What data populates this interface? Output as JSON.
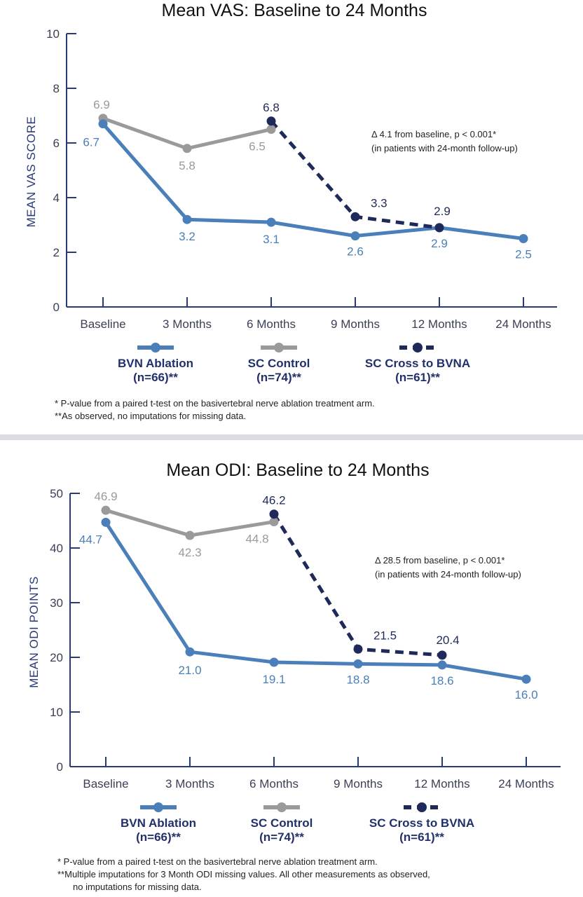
{
  "colors": {
    "bvn": "#4a7fba",
    "sc": "#9a9a9a",
    "cross": "#1f2a5a",
    "axis": "#2a3a78"
  },
  "charts": [
    {
      "title": "Mean VAS: Baseline to 24 Months",
      "ylabel": "MEAN VAS SCORE",
      "y_ticks": [
        "0",
        "2",
        "4",
        "6",
        "8",
        "10"
      ],
      "x_ticks": [
        "Baseline",
        "3 Months",
        "6 Months",
        "9 Months",
        "12 Months",
        "24 Months"
      ],
      "legend": [
        {
          "line1": "BVN Ablation",
          "line2": "(n=66)**"
        },
        {
          "line1": "SC Control",
          "line2": "(n=74)**"
        },
        {
          "line1": "SC Cross to BVNA",
          "line2": "(n=61)**"
        }
      ],
      "annotation": {
        "line1": "Δ 4.1 from baseline, p < 0.001*",
        "line2": "(in patients with 24-month follow-up)"
      },
      "footnotes": [
        "*  P-value from a paired t-test on the basivertebral nerve ablation treatment arm.",
        "**As observed, no imputations for missing data."
      ]
    },
    {
      "title": "Mean ODI: Baseline to 24 Months",
      "ylabel": "MEAN ODI POINTS",
      "y_ticks": [
        "0",
        "10",
        "20",
        "30",
        "40",
        "50"
      ],
      "x_ticks": [
        "Baseline",
        "3 Months",
        "6 Months",
        "9 Months",
        "12 Months",
        "24 Months"
      ],
      "legend": [
        {
          "line1": "BVN Ablation",
          "line2": "(n=66)**"
        },
        {
          "line1": "SC Control",
          "line2": "(n=74)**"
        },
        {
          "line1": "SC Cross to BVNA",
          "line2": "(n=61)**"
        }
      ],
      "annotation": {
        "line1": "Δ 28.5 from baseline, p < 0.001*",
        "line2": "(in patients with 24-month follow-up)"
      },
      "footnotes": [
        "*  P-value from a paired t-test on the basivertebral nerve ablation treatment arm.",
        "**Multiple imputations for 3 Month ODI missing values. All other measurements as observed,",
        "no imputations for missing data."
      ]
    }
  ],
  "chart_data": [
    {
      "type": "line",
      "title": "Mean VAS: Baseline to 24 Months",
      "xlabel": "",
      "ylabel": "MEAN VAS SCORE",
      "ylim": [
        0,
        10
      ],
      "categories": [
        "Baseline",
        "3 Months",
        "6 Months",
        "9 Months",
        "12 Months",
        "24 Months"
      ],
      "series": [
        {
          "name": "BVN Ablation (n=66)**",
          "style": "solid",
          "color": "#4a7fba",
          "values": [
            6.7,
            3.2,
            3.1,
            2.6,
            2.9,
            2.5
          ],
          "labels": [
            "6.7",
            "3.2",
            "3.1",
            "2.6",
            "2.9",
            "2.5"
          ]
        },
        {
          "name": "SC Control (n=74)**",
          "style": "solid",
          "color": "#9a9a9a",
          "values": [
            6.9,
            5.8,
            6.5,
            null,
            null,
            null
          ],
          "labels": [
            "6.9",
            "5.8",
            "6.5",
            "",
            "",
            ""
          ]
        },
        {
          "name": "SC Cross to BVNA (n=61)**",
          "style": "dashed",
          "color": "#1f2a5a",
          "values": [
            null,
            null,
            6.8,
            3.3,
            2.9,
            null
          ],
          "labels": [
            "",
            "",
            "6.8",
            "3.3",
            "2.9",
            ""
          ]
        }
      ],
      "grid": false,
      "legend_position": "bottom"
    },
    {
      "type": "line",
      "title": "Mean ODI: Baseline to 24 Months",
      "xlabel": "",
      "ylabel": "MEAN ODI POINTS",
      "ylim": [
        0,
        50
      ],
      "categories": [
        "Baseline",
        "3 Months",
        "6 Months",
        "9 Months",
        "12 Months",
        "24 Months"
      ],
      "series": [
        {
          "name": "BVN Ablation (n=66)**",
          "style": "solid",
          "color": "#4a7fba",
          "values": [
            44.7,
            21.0,
            19.1,
            18.8,
            18.6,
            16.0
          ],
          "labels": [
            "44.7",
            "21.0",
            "19.1",
            "18.8",
            "18.6",
            "16.0"
          ]
        },
        {
          "name": "SC Control (n=74)**",
          "style": "solid",
          "color": "#9a9a9a",
          "values": [
            46.9,
            42.3,
            44.8,
            null,
            null,
            null
          ],
          "labels": [
            "46.9",
            "42.3",
            "44.8",
            "",
            "",
            ""
          ]
        },
        {
          "name": "SC Cross to BVNA (n=61)**",
          "style": "dashed",
          "color": "#1f2a5a",
          "values": [
            null,
            null,
            46.2,
            21.5,
            20.4,
            null
          ],
          "labels": [
            "",
            "",
            "46.2",
            "21.5",
            "20.4",
            ""
          ]
        }
      ],
      "grid": false,
      "legend_position": "bottom"
    }
  ]
}
